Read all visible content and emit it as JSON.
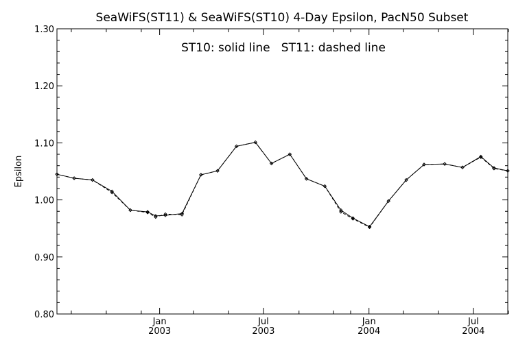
{
  "chart_data": {
    "type": "line",
    "title": "SeaWiFS(ST11) & SeaWiFS(ST10) 4-Day Epsilon, PacN50 Subset",
    "annotation": "ST10: solid line   ST11: dashed line",
    "ylabel": "Epsilon",
    "xlabel": "",
    "xlim": [
      "2002-07-06",
      "2004-08-30"
    ],
    "ylim": [
      0.8,
      1.3
    ],
    "yticks": [
      0.8,
      0.9,
      1.0,
      1.1,
      1.2,
      1.3
    ],
    "ytick_labels": [
      "0.80",
      "0.90",
      "1.00",
      "1.10",
      "1.20",
      "1.30"
    ],
    "xticks": [
      {
        "date": "2003-01-01",
        "label": "Jan",
        "year": "2003"
      },
      {
        "date": "2003-07-01",
        "label": "Jul",
        "year": "2003"
      },
      {
        "date": "2004-01-01",
        "label": "Jan",
        "year": "2004"
      },
      {
        "date": "2004-07-01",
        "label": "Jul",
        "year": "2004"
      }
    ],
    "minor_xticks": [
      "2002-07-31",
      "2002-09-30",
      "2002-11-30",
      "2003-03-01",
      "2003-05-01",
      "2003-09-01",
      "2003-10-31",
      "2003-11-30",
      "2004-03-01",
      "2004-05-01",
      "2004-08-31"
    ],
    "grid": false,
    "series": [
      {
        "name": "ST10",
        "line": "solid",
        "x": [
          "2002-07-06",
          "2002-08-05",
          "2002-09-06",
          "2002-10-10",
          "2002-11-11",
          "2002-12-11",
          "2002-12-25",
          "2003-01-11",
          "2003-02-09",
          "2003-03-14",
          "2003-04-12",
          "2003-05-15",
          "2003-06-17",
          "2003-07-15",
          "2003-08-16",
          "2003-09-14",
          "2003-10-16",
          "2003-11-13",
          "2003-12-04",
          "2004-01-02",
          "2004-02-04",
          "2004-03-06",
          "2004-04-06",
          "2004-05-12",
          "2004-06-12",
          "2004-07-14",
          "2004-08-06",
          "2004-08-30"
        ],
        "y": [
          1.045,
          1.038,
          1.035,
          1.015,
          0.982,
          0.979,
          0.972,
          0.973,
          0.976,
          1.044,
          1.051,
          1.094,
          1.101,
          1.064,
          1.08,
          1.037,
          1.024,
          0.982,
          0.968,
          0.953,
          0.998,
          1.035,
          1.062,
          1.063,
          1.057,
          1.076,
          1.056,
          1.051
        ]
      },
      {
        "name": "ST11",
        "line": "dashed",
        "x": [
          "2002-07-06",
          "2002-08-05",
          "2002-09-06",
          "2002-10-10",
          "2002-11-11",
          "2002-12-11",
          "2002-12-25",
          "2003-01-11",
          "2003-02-09",
          "2003-03-14",
          "2003-04-12",
          "2003-05-15",
          "2003-06-17",
          "2003-07-15",
          "2003-08-16",
          "2003-09-14",
          "2003-10-16",
          "2003-11-13",
          "2003-12-04",
          "2004-01-02",
          "2004-02-04",
          "2004-03-06",
          "2004-04-06",
          "2004-05-12",
          "2004-06-12",
          "2004-07-14",
          "2004-08-06",
          "2004-08-30"
        ],
        "y": [
          1.045,
          1.038,
          1.035,
          1.013,
          0.982,
          0.978,
          0.97,
          0.975,
          0.974,
          1.044,
          1.051,
          1.094,
          1.101,
          1.064,
          1.08,
          1.037,
          1.024,
          0.979,
          0.967,
          0.952,
          0.998,
          1.035,
          1.062,
          1.063,
          1.057,
          1.075,
          1.055,
          1.051
        ]
      }
    ]
  }
}
